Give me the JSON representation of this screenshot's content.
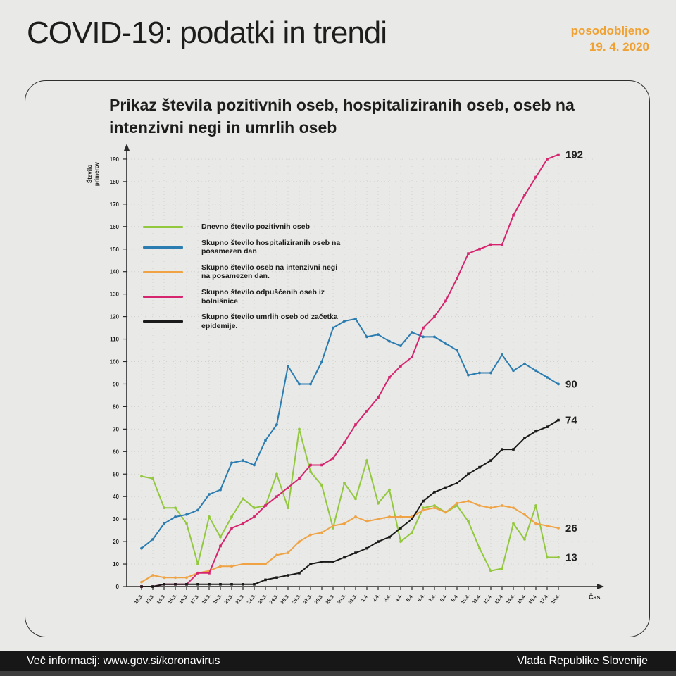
{
  "header": {
    "title": "COVID-19: podatki in trendi",
    "updated_label": "posodobljeno",
    "updated_date": "19. 4. 2020",
    "accent_color": "#f0a132"
  },
  "footer": {
    "left": "Več informacij: www.gov.si/koronavirus",
    "right": "Vlada Republike Slovenije"
  },
  "chart_data": {
    "type": "line",
    "title": "Prikaz števila pozitivnih oseb, hospitaliziranih oseb, oseb na intenzivni negi in umrlih oseb",
    "ylabel": "Število primerov",
    "xlabel": "Čas",
    "ylim": [
      0,
      190
    ],
    "ytick_step": 10,
    "grid": "dotted",
    "legend_position": "upper-left-inside",
    "categories": [
      "12.3.",
      "13.3.",
      "14.3.",
      "15.3.",
      "16.3.",
      "17.3.",
      "18.3.",
      "19.3.",
      "20.3.",
      "21.3.",
      "22.3.",
      "23.3.",
      "24.3.",
      "25.3.",
      "26.3.",
      "27.3.",
      "28.3.",
      "29.3.",
      "30.3.",
      "31.3.",
      "1.4.",
      "2.4.",
      "3.4.",
      "4.4.",
      "5.4.",
      "6.4.",
      "7.4.",
      "8.4.",
      "9.4.",
      "10.4.",
      "11.4.",
      "12.4.",
      "13.4.",
      "14.4.",
      "15.4.",
      "16.4.",
      "17.4.",
      "18.4."
    ],
    "series": [
      {
        "name": "daily-positive",
        "label": "Dnevno število pozitivnih oseb",
        "color": "#93c83e",
        "marker": "circle",
        "end_label": "13",
        "values": [
          49,
          48,
          35,
          35,
          28,
          10,
          31,
          22,
          31,
          39,
          35,
          36,
          50,
          35,
          70,
          51,
          45,
          26,
          46,
          39,
          56,
          37,
          43,
          20,
          24,
          35,
          36,
          33,
          36,
          29,
          17,
          7,
          8,
          28,
          21,
          36,
          13,
          13
        ]
      },
      {
        "name": "hospitalized",
        "label": "Skupno število hospitaliziranih oseb na posamezen dan",
        "color": "#2b7cb0",
        "marker": "circle",
        "end_label": "90",
        "values": [
          17,
          21,
          28,
          31,
          32,
          34,
          41,
          43,
          55,
          56,
          54,
          65,
          72,
          98,
          90,
          90,
          100,
          115,
          118,
          119,
          111,
          112,
          109,
          107,
          113,
          111,
          111,
          108,
          105,
          94,
          95,
          95,
          103,
          96,
          99,
          96,
          93,
          90
        ]
      },
      {
        "name": "icu",
        "label": "Skupno število oseb na intenzivni negi na posamezen dan.",
        "color": "#f0a344",
        "marker": "circle",
        "end_label": "26",
        "values": [
          2,
          5,
          4,
          4,
          4,
          6,
          7,
          9,
          9,
          10,
          10,
          10,
          14,
          15,
          20,
          23,
          24,
          27,
          28,
          31,
          29,
          30,
          31,
          31,
          31,
          34,
          35,
          33,
          37,
          38,
          36,
          35,
          36,
          35,
          32,
          28,
          27,
          26
        ]
      },
      {
        "name": "discharged",
        "label": "Skupno število odpuščenih oseb iz bolnišnice",
        "color": "#d6246e",
        "marker": "square",
        "end_label": "192",
        "values": [
          0,
          0,
          1,
          1,
          1,
          6,
          6,
          18,
          26,
          28,
          31,
          36,
          40,
          44,
          48,
          54,
          54,
          57,
          64,
          72,
          78,
          84,
          93,
          98,
          102,
          115,
          120,
          127,
          137,
          148,
          150,
          152,
          152,
          165,
          174,
          182,
          190,
          192
        ]
      },
      {
        "name": "deaths",
        "label": "Skupno število umrlih oseb od začetka epidemije.",
        "color": "#1a1a1a",
        "marker": "square",
        "end_label": "74",
        "values": [
          0,
          0,
          1,
          1,
          1,
          1,
          1,
          1,
          1,
          1,
          1,
          3,
          4,
          5,
          6,
          10,
          11,
          11,
          13,
          15,
          17,
          20,
          22,
          26,
          30,
          38,
          42,
          44,
          46,
          50,
          53,
          56,
          61,
          61,
          66,
          69,
          71,
          74
        ]
      }
    ]
  }
}
